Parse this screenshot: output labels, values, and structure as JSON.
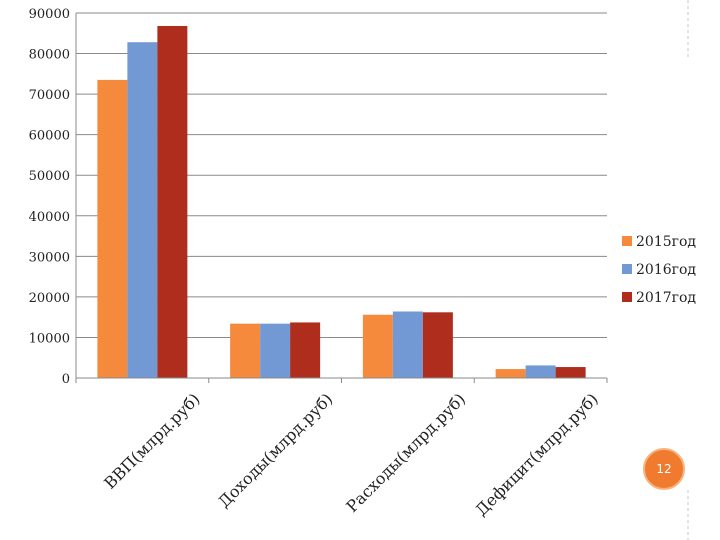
{
  "page": {
    "number": "12",
    "accent": "#f07a2e"
  },
  "chart_data": {
    "type": "bar",
    "categories": [
      "ВВП(млрд.руб)",
      "Доходы(млрд.руб)",
      "Расходы(млрд.руб)",
      "Дефицит(млрд.руб)"
    ],
    "series": [
      {
        "name": "2015год",
        "color": "#f68a3c",
        "values": [
          73500,
          13400,
          15600,
          2200
        ]
      },
      {
        "name": "2016год",
        "color": "#7399d4",
        "values": [
          82800,
          13400,
          16400,
          3100
        ]
      },
      {
        "name": "2017год",
        "color": "#ae2d1d",
        "values": [
          86800,
          13700,
          16200,
          2700
        ]
      }
    ],
    "ylim": [
      0,
      90000
    ],
    "yticks": [
      "0",
      "10000",
      "20000",
      "30000",
      "40000",
      "50000",
      "60000",
      "70000",
      "80000",
      "90000"
    ],
    "grid": true,
    "legend_position": "right",
    "title": "",
    "xlabel": "",
    "ylabel": ""
  }
}
